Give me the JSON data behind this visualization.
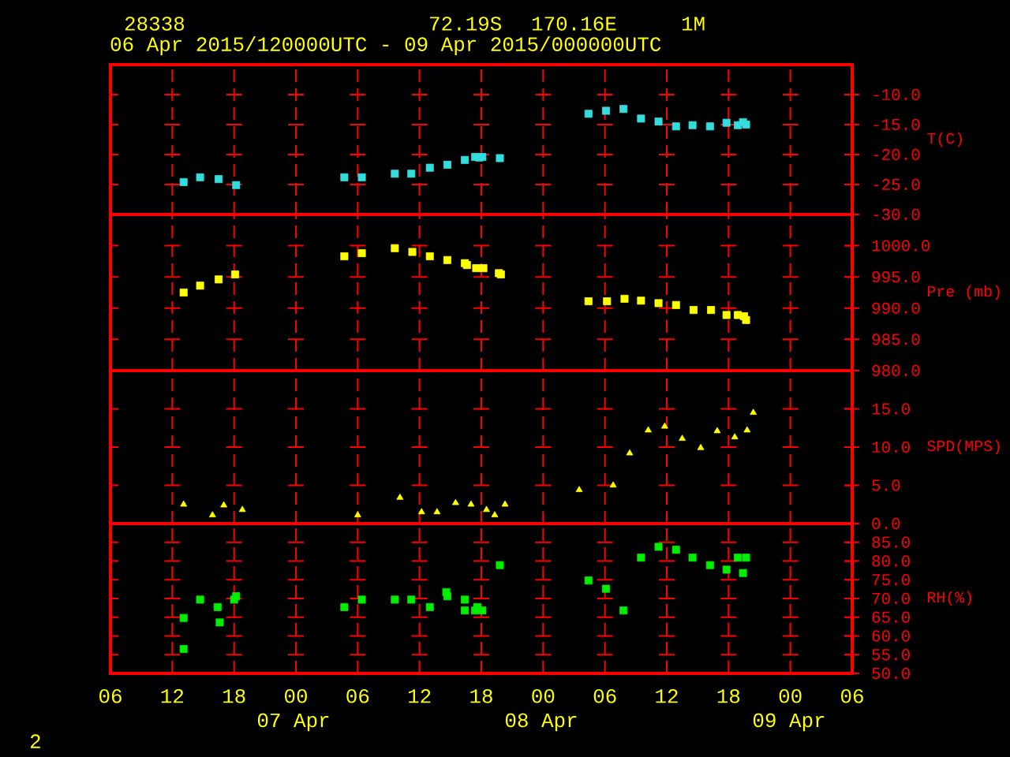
{
  "chart_data": [
    {
      "type": "scatter",
      "title": "28338",
      "subtitle": "06 Apr 2015/120000UTC - 09 Apr 2015/000000UTC",
      "annotations": [
        "72.19S",
        "170.16E",
        "1M"
      ],
      "ylabel": "T(C)",
      "color": "#33dddd",
      "marker": "square",
      "grid": true,
      "tick_labels": "y",
      "x": [
        13.1,
        14.7,
        16.5,
        18.2,
        28.7,
        30.4,
        33.6,
        35.2,
        37.0,
        38.7,
        40.4,
        41.4,
        41.8,
        42.1,
        43.8,
        52.4,
        54.1,
        55.8,
        57.5,
        59.2,
        60.9,
        62.5,
        64.2,
        65.8,
        66.9,
        67.4,
        67.7
      ],
      "values": [
        -24.6,
        -23.8,
        -24.1,
        -25.1,
        -23.8,
        -23.8,
        -23.2,
        -23.2,
        -22.2,
        -21.7,
        -20.9,
        -20.4,
        -20.5,
        -20.4,
        -20.6,
        -13.2,
        -12.7,
        -12.4,
        -14.0,
        -14.5,
        -15.3,
        -15.1,
        -15.3,
        -14.7,
        -15.1,
        -14.6,
        -15.0
      ],
      "xlim": [
        6,
        78
      ],
      "xticks": [
        {
          "value": 6,
          "label": null
        },
        {
          "value": 12,
          "label": null
        },
        {
          "value": 18,
          "label": null
        },
        {
          "value": 24,
          "label": null
        },
        {
          "value": 30,
          "label": null
        },
        {
          "value": 36,
          "label": null
        },
        {
          "value": 42,
          "label": null
        },
        {
          "value": 48,
          "label": null
        },
        {
          "value": 54,
          "label": null
        },
        {
          "value": 60,
          "label": null
        },
        {
          "value": 66,
          "label": null
        },
        {
          "value": 72,
          "label": null
        },
        {
          "value": 78,
          "label": null
        }
      ],
      "ylim": [
        -30,
        -5
      ],
      "yticks": [
        {
          "value": -10,
          "label": "-10.0"
        },
        {
          "value": -15,
          "label": "-15.0"
        },
        {
          "value": -20,
          "label": "-20.0"
        },
        {
          "value": -25,
          "label": "-25.0"
        },
        {
          "value": -30,
          "label": "-30.0"
        }
      ]
    },
    {
      "type": "scatter",
      "ylabel": "Pre (mb)",
      "color": "#ffff00",
      "marker": "square",
      "grid": true,
      "tick_labels": "y",
      "x": [
        13.1,
        14.7,
        16.5,
        18.1,
        28.7,
        30.4,
        33.6,
        35.3,
        37.0,
        38.7,
        40.4,
        40.6,
        41.5,
        42.2,
        43.7,
        43.9,
        52.4,
        54.2,
        55.9,
        57.5,
        59.2,
        60.9,
        62.6,
        64.3,
        65.8,
        66.9,
        67.5,
        67.7
      ],
      "values": [
        992.5,
        993.6,
        994.6,
        995.4,
        998.3,
        998.8,
        999.6,
        999.0,
        998.3,
        997.7,
        997.2,
        996.9,
        996.4,
        996.4,
        995.6,
        995.4,
        991.1,
        991.1,
        991.5,
        991.2,
        990.8,
        990.5,
        989.7,
        989.7,
        988.9,
        988.9,
        988.7,
        988.1
      ],
      "xlim": [
        6,
        78
      ],
      "xticks": [
        {
          "value": 6,
          "label": null
        },
        {
          "value": 12,
          "label": null
        },
        {
          "value": 18,
          "label": null
        },
        {
          "value": 24,
          "label": null
        },
        {
          "value": 30,
          "label": null
        },
        {
          "value": 36,
          "label": null
        },
        {
          "value": 42,
          "label": null
        },
        {
          "value": 48,
          "label": null
        },
        {
          "value": 54,
          "label": null
        },
        {
          "value": 60,
          "label": null
        },
        {
          "value": 66,
          "label": null
        },
        {
          "value": 72,
          "label": null
        },
        {
          "value": 78,
          "label": null
        }
      ],
      "ylim": [
        980,
        1005
      ],
      "yticks": [
        {
          "value": 1000,
          "label": "1000.0"
        },
        {
          "value": 995,
          "label": "995.0"
        },
        {
          "value": 990,
          "label": "990.0"
        },
        {
          "value": 985,
          "label": "985.0"
        },
        {
          "value": 980,
          "label": "980.0"
        }
      ]
    },
    {
      "type": "scatter",
      "ylabel": "SPD(MPS)",
      "color": "#ffff00",
      "marker": "triangle",
      "grid": true,
      "tick_labels": "y",
      "x": [
        13.1,
        15.9,
        17.0,
        18.8,
        30.0,
        34.1,
        36.2,
        37.7,
        39.5,
        41.0,
        42.5,
        43.3,
        44.3,
        51.5,
        54.8,
        56.4,
        58.2,
        59.8,
        61.5,
        63.3,
        64.9,
        66.6,
        67.8,
        68.4
      ],
      "values": [
        2.5,
        1.1,
        2.4,
        1.8,
        1.1,
        3.4,
        1.5,
        1.5,
        2.7,
        2.5,
        1.8,
        1.1,
        2.5,
        4.4,
        5.0,
        9.2,
        12.2,
        12.7,
        11.1,
        9.9,
        12.1,
        11.3,
        12.2,
        14.5
      ],
      "xlim": [
        6,
        78
      ],
      "xticks": [
        {
          "value": 6,
          "label": null
        },
        {
          "value": 12,
          "label": null
        },
        {
          "value": 18,
          "label": null
        },
        {
          "value": 24,
          "label": null
        },
        {
          "value": 30,
          "label": null
        },
        {
          "value": 36,
          "label": null
        },
        {
          "value": 42,
          "label": null
        },
        {
          "value": 48,
          "label": null
        },
        {
          "value": 54,
          "label": null
        },
        {
          "value": 60,
          "label": null
        },
        {
          "value": 66,
          "label": null
        },
        {
          "value": 72,
          "label": null
        },
        {
          "value": 78,
          "label": null
        }
      ],
      "ylim": [
        0,
        20
      ],
      "yticks": [
        {
          "value": 15,
          "label": "15.0"
        },
        {
          "value": 10,
          "label": "10.0"
        },
        {
          "value": 5,
          "label": "5.0"
        },
        {
          "value": 0,
          "label": "0.0"
        }
      ]
    },
    {
      "type": "scatter",
      "ylabel": "RH(%)",
      "color": "#00ee00",
      "marker": "square",
      "grid": true,
      "annotations": [
        "07 Apr",
        "08 Apr",
        "09 Apr",
        "2"
      ],
      "x": [
        13.1,
        13.1,
        14.7,
        16.4,
        16.6,
        18.0,
        18.2,
        28.7,
        30.4,
        33.6,
        35.2,
        37.0,
        38.6,
        38.7,
        40.4,
        40.4,
        41.4,
        41.6,
        42.1,
        43.8,
        52.4,
        54.1,
        55.8,
        57.5,
        59.2,
        60.9,
        62.5,
        64.2,
        65.8,
        66.9,
        67.4,
        67.7
      ],
      "values": [
        64.8,
        56.5,
        69.7,
        67.7,
        63.6,
        69.7,
        70.6,
        67.7,
        69.7,
        69.7,
        69.7,
        67.7,
        71.7,
        70.6,
        66.8,
        69.7,
        66.8,
        67.7,
        66.8,
        78.9,
        74.8,
        72.6,
        66.8,
        80.9,
        83.8,
        83.0,
        80.9,
        78.9,
        77.7,
        80.9,
        76.8,
        80.9
      ],
      "xlim": [
        6,
        78
      ],
      "xticks": [
        {
          "value": 6,
          "label": "06"
        },
        {
          "value": 12,
          "label": "12"
        },
        {
          "value": 18,
          "label": "18"
        },
        {
          "value": 24,
          "label": "00"
        },
        {
          "value": 30,
          "label": "06"
        },
        {
          "value": 36,
          "label": "12"
        },
        {
          "value": 42,
          "label": "18"
        },
        {
          "value": 48,
          "label": "00"
        },
        {
          "value": 54,
          "label": "06"
        },
        {
          "value": 60,
          "label": "12"
        },
        {
          "value": 66,
          "label": "18"
        },
        {
          "value": 72,
          "label": "00"
        },
        {
          "value": 78,
          "label": "06"
        }
      ],
      "ylim": [
        50,
        90
      ],
      "yticks": [
        {
          "value": 85,
          "label": "85.0"
        },
        {
          "value": 80,
          "label": "80.0"
        },
        {
          "value": 75,
          "label": "75.0"
        },
        {
          "value": 70,
          "label": "70.0"
        },
        {
          "value": 65,
          "label": "65.0"
        },
        {
          "value": 60,
          "label": "60.0"
        },
        {
          "value": 55,
          "label": "55.0"
        },
        {
          "value": 50,
          "label": "50.0"
        }
      ]
    }
  ]
}
